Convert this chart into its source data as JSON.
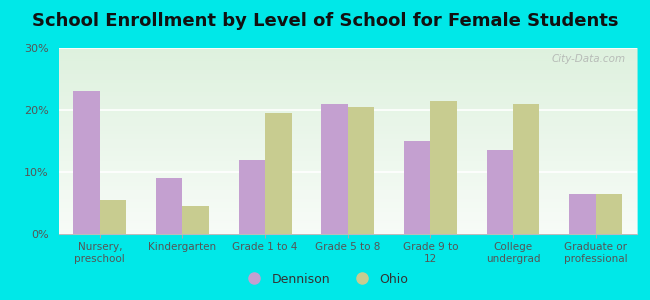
{
  "title": "School Enrollment by Level of School for Female Students",
  "categories": [
    "Nursery,\npreschool",
    "Kindergarten",
    "Grade 1 to 4",
    "Grade 5 to 8",
    "Grade 9 to\n12",
    "College\nundergrad",
    "Graduate or\nprofessional"
  ],
  "dennison_values": [
    23.0,
    9.0,
    12.0,
    21.0,
    15.0,
    13.5,
    6.5
  ],
  "ohio_values": [
    5.5,
    4.5,
    19.5,
    20.5,
    21.5,
    21.0,
    6.5
  ],
  "dennison_color": "#c4a0d0",
  "ohio_color": "#c8cc90",
  "background_color": "#00e8e8",
  "plot_bg_color": "#e8f5e9",
  "ylim": [
    0,
    30
  ],
  "yticks": [
    0,
    10,
    20,
    30
  ],
  "ytick_labels": [
    "0%",
    "10%",
    "20%",
    "30%"
  ],
  "bar_width": 0.32,
  "title_fontsize": 13,
  "legend_labels": [
    "Dennison",
    "Ohio"
  ],
  "watermark": "City-Data.com"
}
